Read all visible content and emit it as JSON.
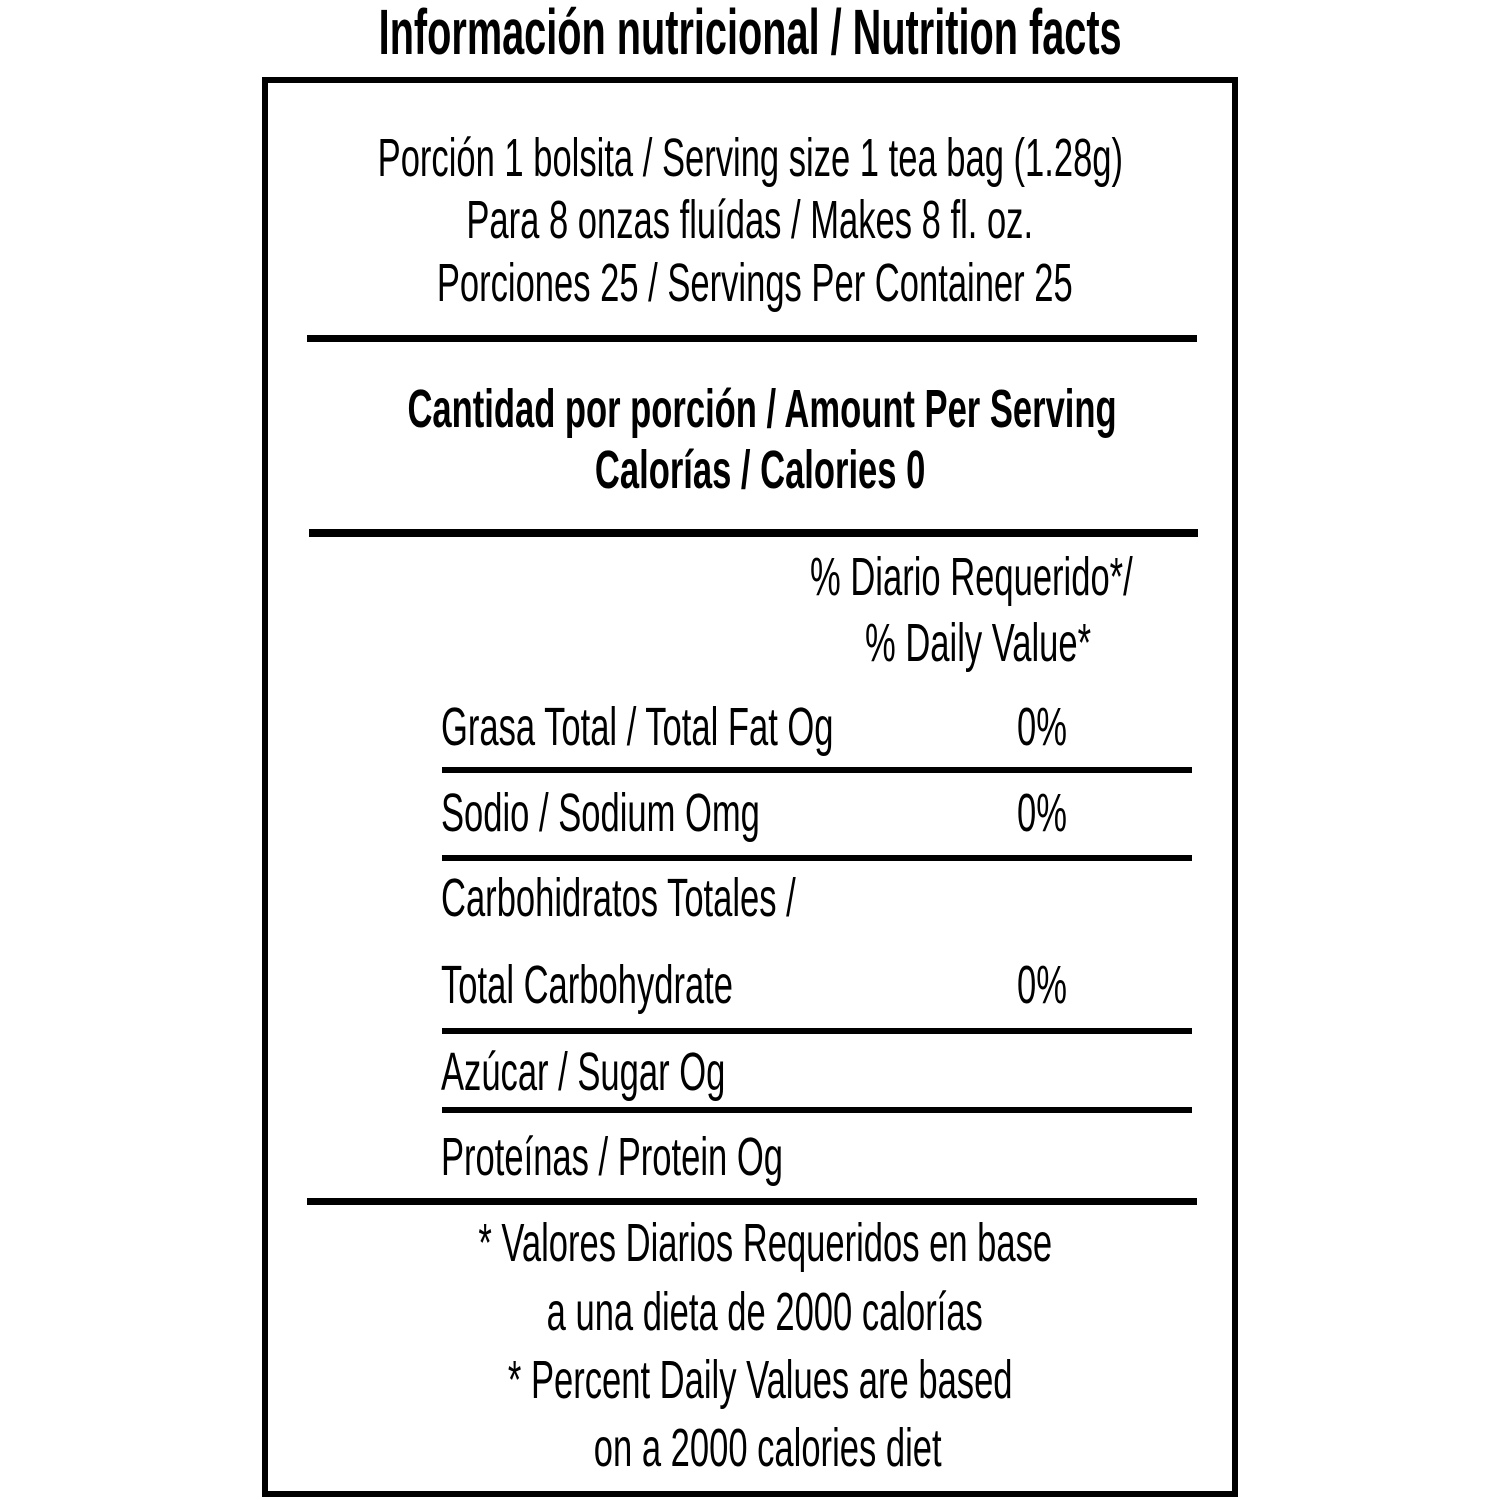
{
  "title": "Información nutricional / Nutrition facts",
  "serving": [
    "Porción 1 bolsita /  Serving size 1 tea bag (1.28g)",
    "Para 8 onzas fluídas / Makes 8 fl. oz.",
    "Porciones 25 / Servings Per Container 25"
  ],
  "amount": {
    "heading": "Cantidad por porción / Amount Per Serving",
    "calories": "Calorías / Calories 0"
  },
  "dv_header": [
    "% Diario Requerido*/",
    "% Daily Value*"
  ],
  "nutrients": [
    {
      "label": "Grasa Total / Total Fat Og",
      "dv": "0%"
    },
    {
      "label": "Sodio / Sodium Omg",
      "dv": "0%"
    },
    {
      "label_line1": "Carbohidratos Totales /",
      "label": "Total Carbohydrate",
      "dv": "0%"
    },
    {
      "label": "Azúcar / Sugar Og",
      "dv": ""
    },
    {
      "label": "Proteínas / Protein Og",
      "dv": ""
    }
  ],
  "footnote": [
    "* Valores Diarios Requeridos en base",
    "a una dieta de 2000 calorías",
    "* Percent  Daily Values are based",
    "on a 2000 calories diet"
  ]
}
